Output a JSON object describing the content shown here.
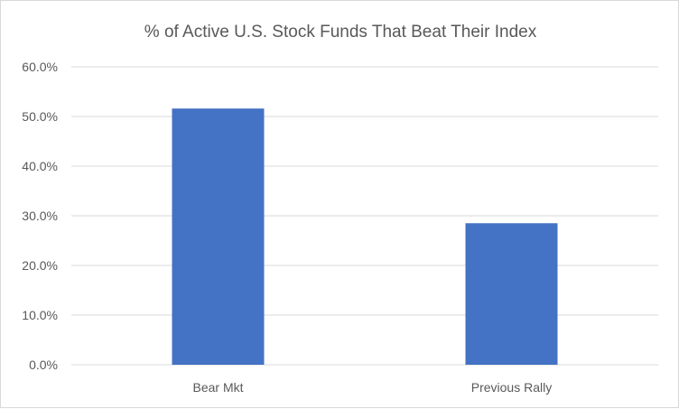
{
  "chart_data": {
    "type": "bar",
    "title": "% of Active U.S. Stock Funds That Beat Their Index",
    "xlabel": "",
    "ylabel": "",
    "categories": [
      "Bear Mkt",
      "Previous Rally"
    ],
    "values": [
      51.6,
      28.5
    ],
    "ylim": [
      0,
      60
    ],
    "yticks": [
      "0.0%",
      "10.0%",
      "20.0%",
      "30.0%",
      "40.0%",
      "50.0%",
      "60.0%"
    ],
    "grid": true,
    "legend": "none",
    "bar_color": "#4472c4"
  }
}
